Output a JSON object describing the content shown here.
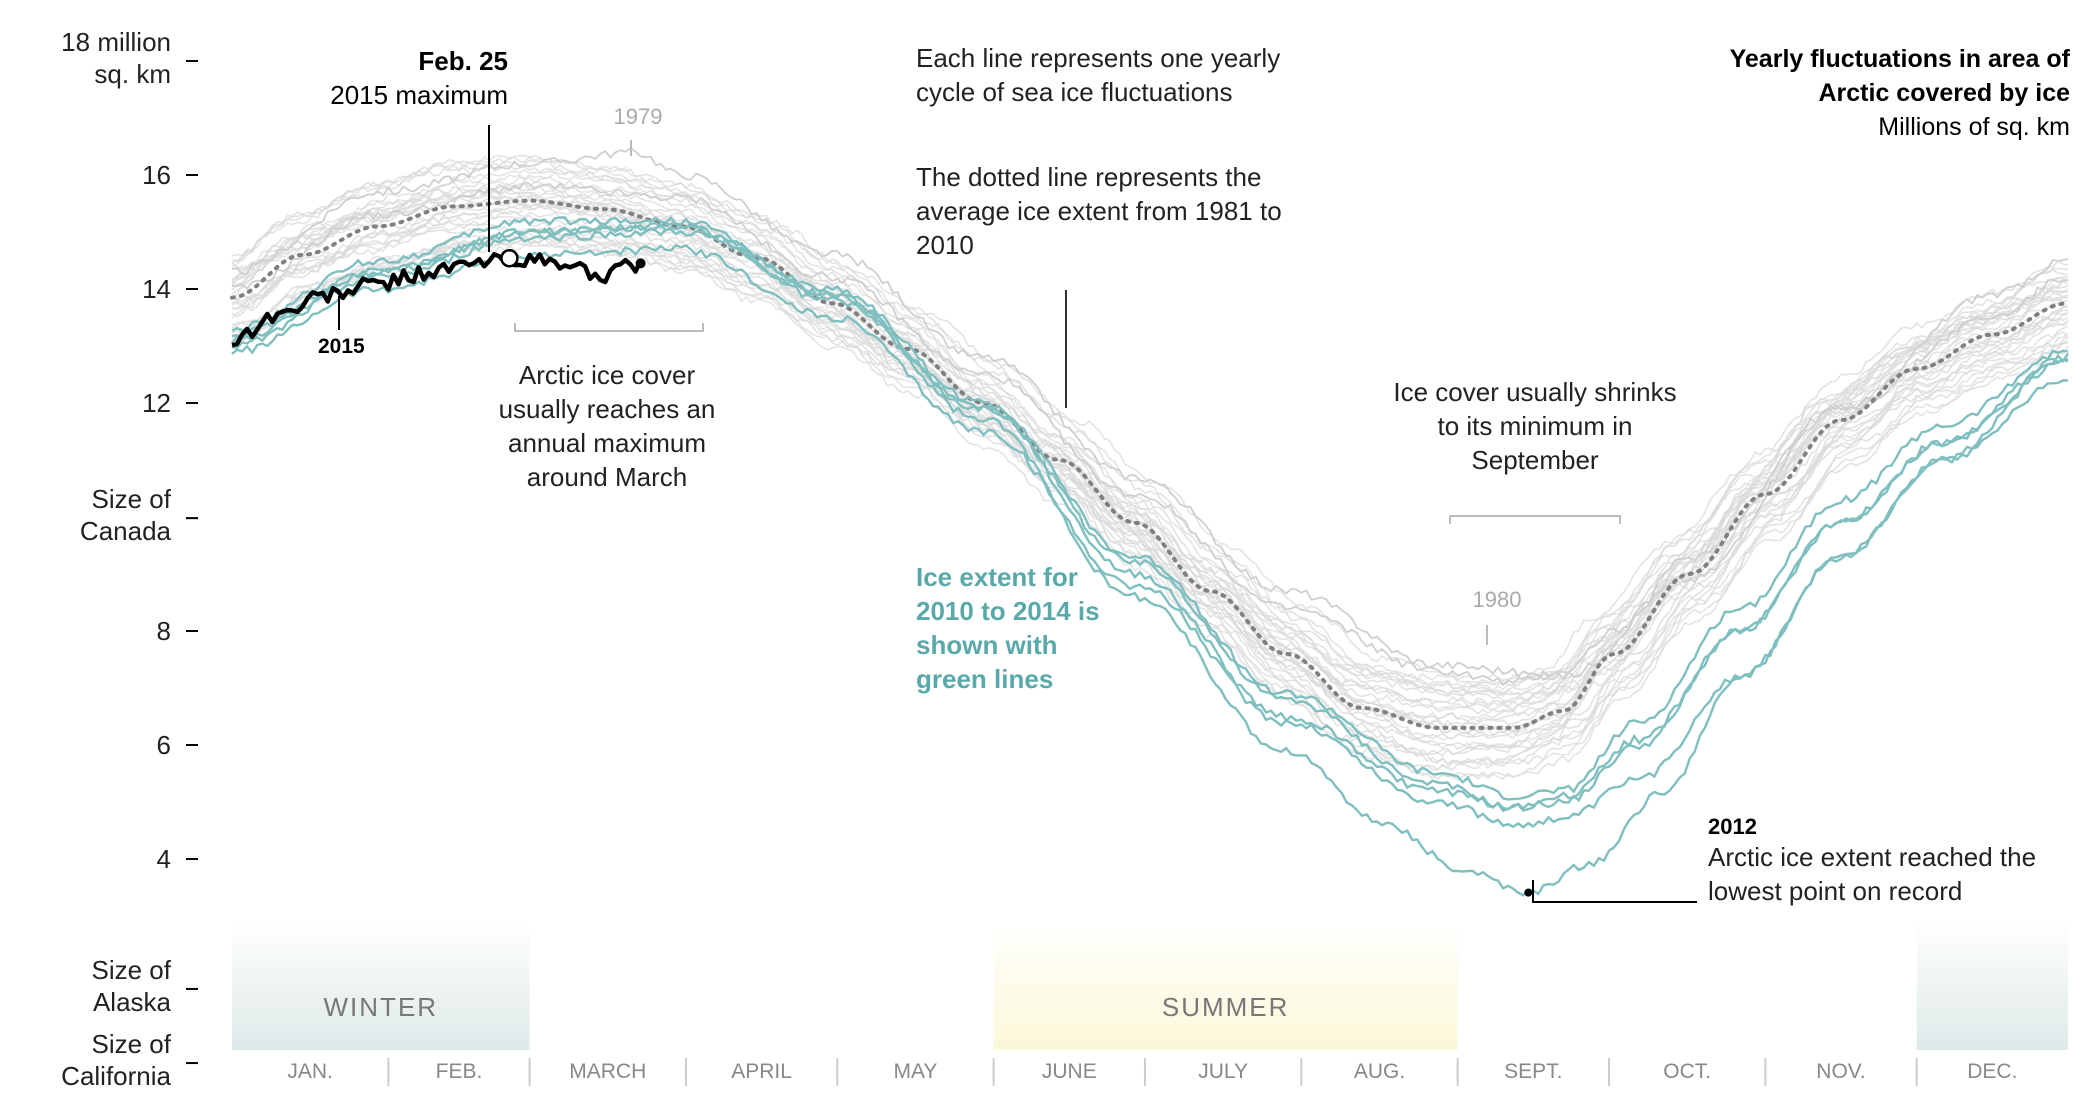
{
  "chart_data": {
    "type": "line",
    "title": "Yearly fluctuations in area of Arctic covered by ice",
    "subtitle": "Millions of sq. km",
    "ylim": [
      0.4,
      18
    ],
    "x_unit": "day of year",
    "xlim": [
      1,
      365
    ],
    "y_ticks": [
      {
        "value": 18,
        "label": [
          "18 million",
          "sq. km"
        ]
      },
      {
        "value": 16,
        "label": [
          "16"
        ]
      },
      {
        "value": 14,
        "label": [
          "14"
        ]
      },
      {
        "value": 12,
        "label": [
          "12"
        ]
      },
      {
        "value": 9.98,
        "label": [
          "Size of",
          "Canada"
        ]
      },
      {
        "value": 8,
        "label": [
          "8"
        ]
      },
      {
        "value": 6,
        "label": [
          "6"
        ]
      },
      {
        "value": 4,
        "label": [
          "4"
        ]
      },
      {
        "value": 1.72,
        "label": [
          "Size of",
          "Alaska"
        ]
      },
      {
        "value": 0.42,
        "label": [
          "Size of",
          "California"
        ]
      }
    ],
    "months": [
      "JAN.",
      "FEB.",
      "MARCH",
      "APRIL",
      "MAY",
      "JUNE",
      "JULY",
      "AUG.",
      "SEPT.",
      "OCT.",
      "NOV.",
      "DEC."
    ],
    "seasons": [
      {
        "label": "WINTER",
        "color": "#dfe9e9",
        "start_day": 1,
        "end_day": 60
      },
      {
        "label": "SUMMER",
        "color": "#fbf8d8",
        "start_day": 152,
        "end_day": 244
      },
      {
        "label": "",
        "color": "#dfe9e9",
        "start_day": 335,
        "end_day": 365
      }
    ],
    "colors": {
      "history": "#d9d9d9",
      "recent": "#7fbfc0",
      "current": "#000000",
      "average": "#808080",
      "annotation": "#5aa9aa"
    },
    "average_1981_2010": {
      "x": [
        1,
        15,
        30,
        45,
        60,
        75,
        90,
        105,
        120,
        135,
        150,
        165,
        180,
        195,
        210,
        225,
        240,
        255,
        265,
        275,
        290,
        305,
        320,
        335,
        350,
        365
      ],
      "y": [
        13.85,
        14.6,
        15.1,
        15.45,
        15.55,
        15.4,
        15.1,
        14.55,
        13.75,
        12.95,
        12.0,
        11.0,
        9.9,
        8.7,
        7.6,
        6.65,
        6.3,
        6.3,
        6.6,
        7.6,
        9.0,
        10.4,
        11.7,
        12.6,
        13.2,
        13.75
      ]
    },
    "series": [
      {
        "name": "1979",
        "x": [
          1,
          30,
          60,
          81,
          90,
          120,
          150,
          180,
          210,
          240,
          265,
          290,
          320,
          350,
          365
        ],
        "y": [
          14.3,
          15.7,
          16.2,
          16.4,
          16.0,
          14.6,
          12.8,
          10.7,
          8.7,
          7.4,
          7.2,
          8.9,
          11.9,
          13.9,
          14.5
        ]
      },
      {
        "name": "1980",
        "x": [
          1,
          30,
          60,
          90,
          120,
          150,
          180,
          210,
          240,
          255,
          265,
          275,
          290,
          320,
          350,
          365
        ],
        "y": [
          14.0,
          15.3,
          15.8,
          15.6,
          14.2,
          12.5,
          10.4,
          8.4,
          7.3,
          7.1,
          7.3,
          8.0,
          9.3,
          11.9,
          13.5,
          14.2
        ]
      },
      {
        "name": "2010",
        "x": [
          1,
          30,
          60,
          90,
          120,
          150,
          180,
          210,
          240,
          255,
          265,
          280,
          300,
          320,
          340,
          365
        ],
        "y": [
          13.1,
          14.3,
          15.0,
          15.1,
          13.8,
          11.9,
          9.2,
          6.8,
          5.3,
          4.9,
          5.0,
          6.0,
          8.0,
          9.9,
          11.3,
          12.7
        ]
      },
      {
        "name": "2011",
        "x": [
          1,
          30,
          60,
          90,
          120,
          150,
          180,
          210,
          240,
          255,
          265,
          280,
          300,
          320,
          340,
          365
        ],
        "y": [
          12.9,
          14.0,
          14.6,
          14.7,
          13.5,
          11.5,
          8.8,
          6.4,
          5.0,
          4.6,
          4.7,
          5.4,
          7.2,
          9.3,
          11.0,
          12.4
        ]
      },
      {
        "name": "2012",
        "x": [
          1,
          30,
          60,
          90,
          120,
          150,
          180,
          210,
          230,
          245,
          258,
          270,
          285,
          300,
          320,
          340,
          365
        ],
        "y": [
          13.3,
          14.5,
          15.2,
          15.2,
          13.9,
          11.7,
          8.6,
          5.9,
          4.6,
          3.8,
          3.4,
          3.9,
          5.2,
          7.2,
          9.3,
          11.0,
          12.8
        ]
      },
      {
        "name": "2013",
        "x": [
          1,
          30,
          60,
          90,
          120,
          150,
          180,
          210,
          240,
          255,
          265,
          280,
          300,
          320,
          340,
          365
        ],
        "y": [
          13.2,
          14.3,
          15.0,
          15.1,
          14.0,
          12.0,
          9.3,
          6.9,
          5.5,
          5.1,
          5.2,
          6.4,
          8.4,
          10.3,
          11.6,
          12.9
        ]
      },
      {
        "name": "2014",
        "x": [
          1,
          30,
          60,
          90,
          120,
          150,
          180,
          210,
          240,
          255,
          265,
          280,
          300,
          320,
          340,
          365
        ],
        "y": [
          13.0,
          14.2,
          14.9,
          15.0,
          13.9,
          11.9,
          9.0,
          6.5,
          5.2,
          4.9,
          5.1,
          6.1,
          8.0,
          9.9,
          11.3,
          12.8
        ]
      },
      {
        "name": "2015",
        "x": [
          1,
          10,
          20,
          30,
          40,
          50,
          56,
          65,
          75,
          82
        ],
        "y": [
          13.1,
          13.55,
          13.9,
          14.1,
          14.3,
          14.45,
          14.54,
          14.45,
          14.25,
          14.45
        ]
      }
    ],
    "maximum_2015": {
      "date": "Feb. 25",
      "value": 14.54
    },
    "minimum_2012": {
      "value": 3.41
    },
    "annotations": {
      "feb25_bold": "Feb. 25",
      "feb25_sub": "2015 maximum",
      "label_2015": "2015",
      "label_1979": "1979",
      "label_1980": "1980",
      "yearly_note": [
        "Each line represents one yearly",
        "cycle of sea ice fluctuations"
      ],
      "dotted_note": [
        "The dotted line represents the",
        "average ice extent from 1981 to",
        "2010"
      ],
      "march_note": [
        "Arctic ice cover",
        "usually reaches an",
        "annual maximum",
        "around March"
      ],
      "sept_note": [
        "Ice cover usually shrinks",
        "to its minimum in",
        "September"
      ],
      "green_note": [
        "Ice extent for",
        "2010 to 2014 is",
        "shown with",
        "green lines"
      ],
      "record_bold": "2012",
      "record_note": [
        "Arctic ice extent reached the",
        "lowest point on record"
      ],
      "title_lines": [
        "Yearly fluctuations in area of",
        "Arctic covered by ice"
      ]
    }
  }
}
